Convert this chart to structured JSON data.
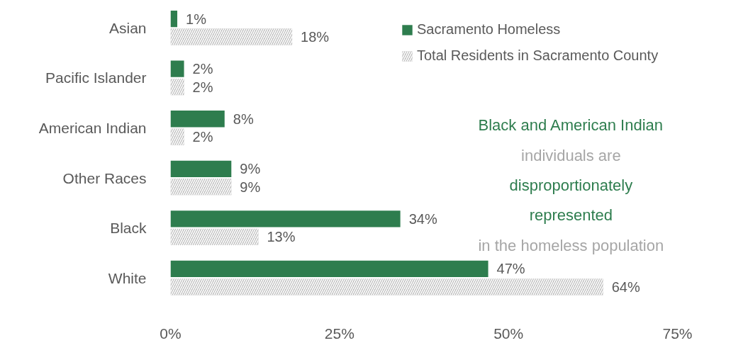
{
  "chart_data": {
    "type": "bar",
    "orientation": "horizontal",
    "categories": [
      "Asian",
      "Pacific Islander",
      "American Indian",
      "Other Races",
      "Black",
      "White"
    ],
    "series": [
      {
        "name": "Sacramento Homeless",
        "color": "#2e7d4e",
        "values": [
          1,
          2,
          8,
          9,
          34,
          47
        ],
        "value_labels": [
          "1%",
          "2%",
          "8%",
          "9%",
          "34%",
          "47%"
        ]
      },
      {
        "name": "Total Residents in Sacramento County",
        "color": "#b8b8b8",
        "values": [
          18,
          2,
          2,
          9,
          13,
          64
        ],
        "value_labels": [
          "18%",
          "2%",
          "2%",
          "9%",
          "13%",
          "64%"
        ]
      }
    ],
    "xlim": [
      0,
      75
    ],
    "xticks": [
      {
        "value": 0,
        "label": "0%"
      },
      {
        "value": 25,
        "label": "25%"
      },
      {
        "value": 50,
        "label": "50%"
      },
      {
        "value": 75,
        "label": "75%"
      }
    ],
    "grid": false,
    "legend": "top right",
    "annotations": [
      "Black and American Indian",
      "individuals are",
      "disproportionately",
      "represented",
      "in the homeless population"
    ]
  }
}
